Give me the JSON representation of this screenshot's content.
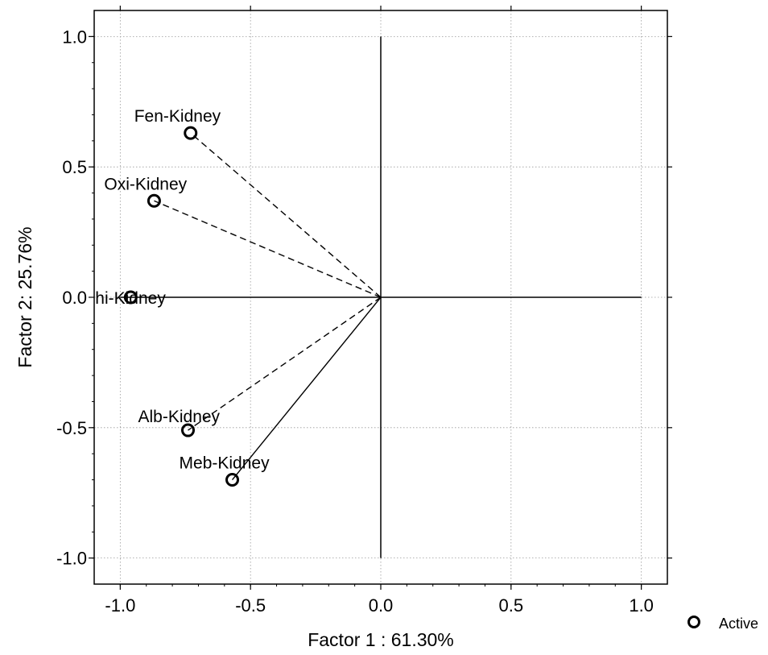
{
  "chart_data": {
    "type": "scatter",
    "xlabel": "Factor 1 : 61.30%",
    "ylabel": "Factor 2: 25.76%",
    "xlim": [
      -1.1,
      1.1
    ],
    "ylim": [
      -1.1,
      1.1
    ],
    "xticks": [
      -1.0,
      -0.5,
      0.0,
      0.5,
      1.0
    ],
    "yticks": [
      -1.0,
      -0.5,
      0.0,
      0.5,
      1.0
    ],
    "xtick_labels": [
      "-1.0",
      "-0.5",
      "0.0",
      "0.5",
      "1.0"
    ],
    "ytick_labels": [
      "-1.0",
      "-0.5",
      "0.0",
      "0.5",
      "1.0"
    ],
    "grid": true,
    "legend": {
      "position": "bottom-right",
      "label": "Active",
      "marker": "circle-open"
    },
    "points": [
      {
        "label": "Fen-Kidney",
        "x": -0.73,
        "y": 0.63,
        "vector_style": "dashed"
      },
      {
        "label": "Oxi-Kidney",
        "x": -0.87,
        "y": 0.37,
        "vector_style": "dashed"
      },
      {
        "label": "hi-Kidney",
        "x": -0.96,
        "y": 0.0,
        "vector_style": "none"
      },
      {
        "label": "Alb-Kidney",
        "x": -0.74,
        "y": -0.51,
        "vector_style": "dashed"
      },
      {
        "label": "Meb-Kidney",
        "x": -0.57,
        "y": -0.7,
        "vector_style": "solid"
      }
    ],
    "colors": {
      "marker": "#000000",
      "axes": "#000000",
      "grid": "#9a9a9a"
    }
  }
}
